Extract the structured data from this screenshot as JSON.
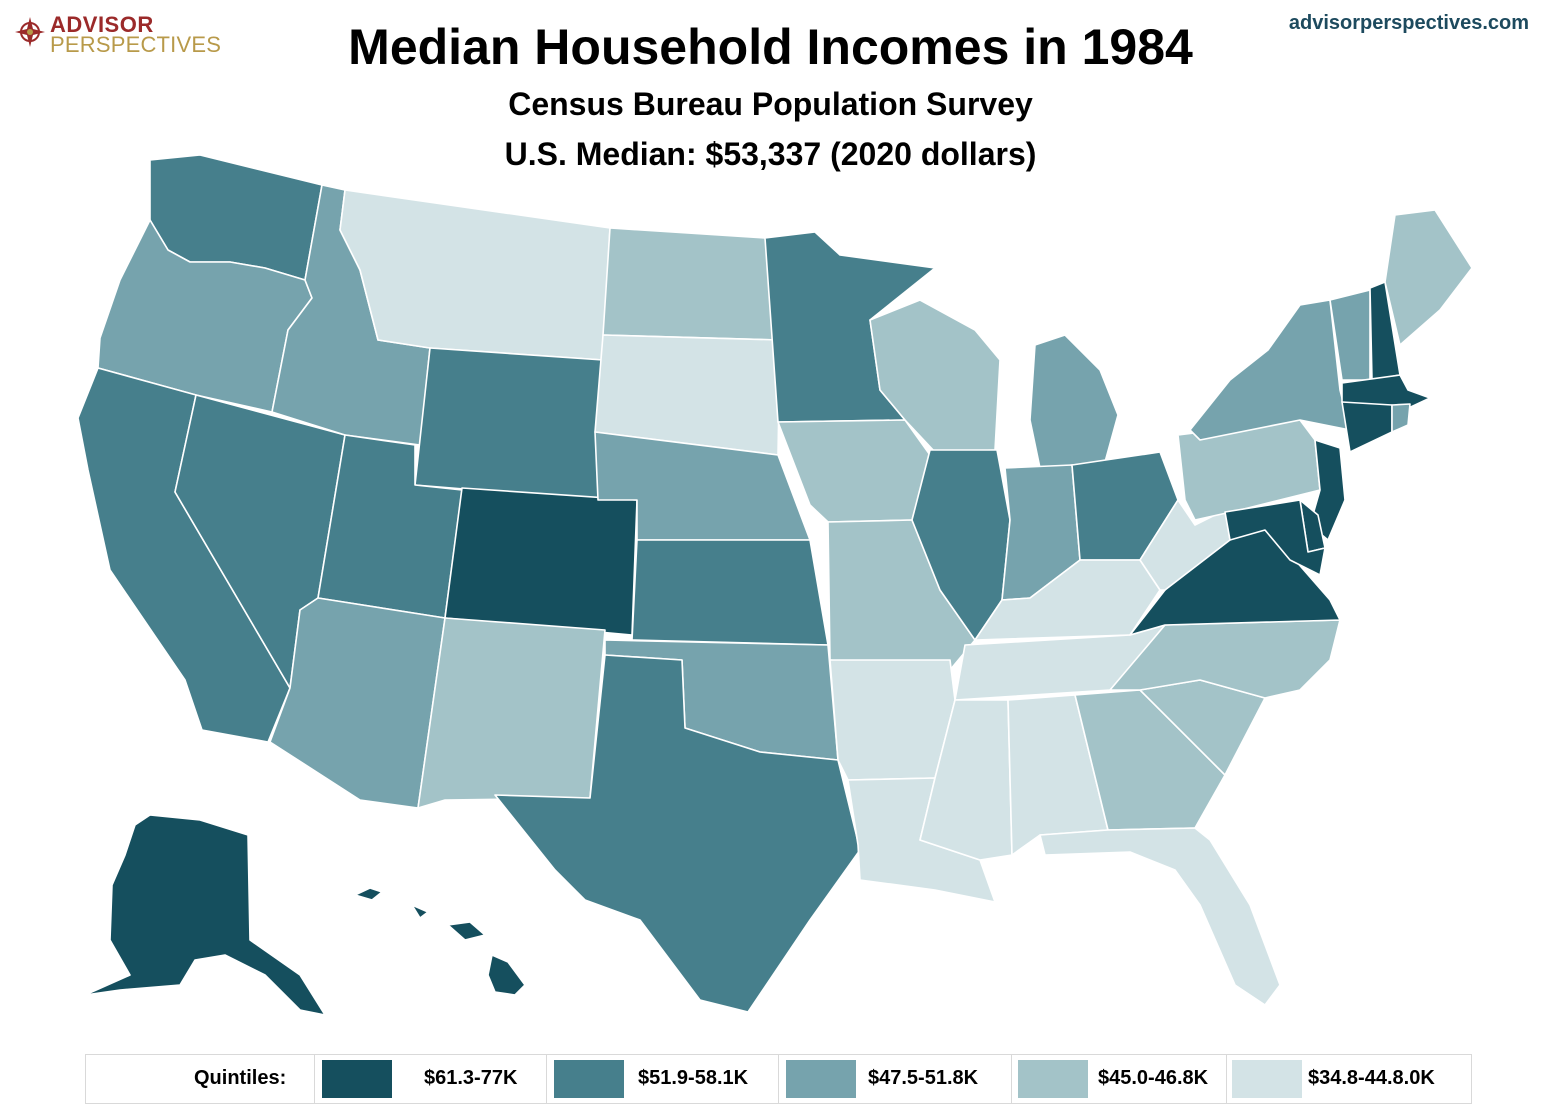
{
  "branding": {
    "logo_line1": "ADVISOR",
    "logo_line2": "PERSPECTIVES",
    "site": "advisorperspectives.com"
  },
  "title": "Median Household Incomes in 1984",
  "subtitle1": "Census Bureau Population Survey",
  "subtitle2": "U.S. Median: $53,337 (2020 dollars)",
  "legend": {
    "label": "Quintiles:",
    "items": [
      {
        "range": "$61.3-77K",
        "color": "#154f5e"
      },
      {
        "range": "$51.9-58.1K",
        "color": "#467f8c"
      },
      {
        "range": "$47.5-51.8K",
        "color": "#76a3ad"
      },
      {
        "range": "$45.0-46.8K",
        "color": "#a3c3c8"
      },
      {
        "range": "$34.8-44.8.0K",
        "color": "#d3e3e6"
      }
    ]
  },
  "states_by_quintile": {
    "1": [
      "AK",
      "HI",
      "CO",
      "VA",
      "MD",
      "DE",
      "NJ",
      "CT",
      "MA",
      "NH"
    ],
    "2": [
      "WA",
      "CA",
      "NV",
      "UT",
      "WY",
      "TX",
      "KS",
      "MN",
      "IL",
      "OH"
    ],
    "3": [
      "OR",
      "ID",
      "AZ",
      "NE",
      "OK",
      "MI",
      "IN",
      "NY",
      "VT",
      "RI"
    ],
    "4": [
      "ND",
      "NM",
      "IA",
      "WI",
      "MO",
      "PA",
      "NC",
      "SC",
      "GA",
      "ME"
    ],
    "5": [
      "MT",
      "SD",
      "AR",
      "LA",
      "MS",
      "AL",
      "TN",
      "KY",
      "WV",
      "FL"
    ]
  }
}
